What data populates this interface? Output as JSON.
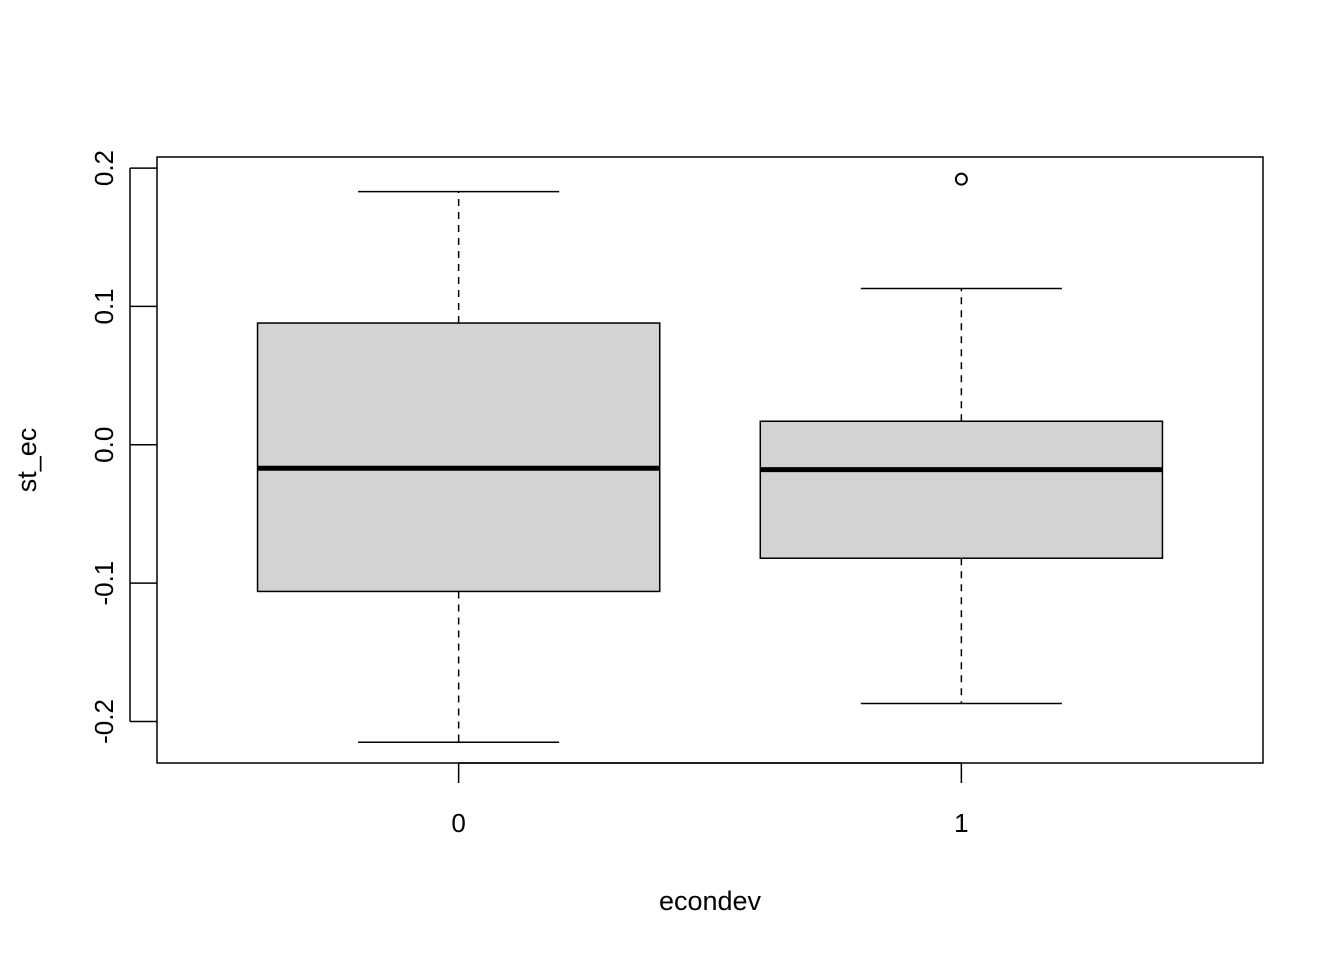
{
  "chart_data": {
    "type": "boxplot",
    "xlabel": "econdev",
    "ylabel": "st_ec",
    "categories": [
      "0",
      "1"
    ],
    "ylim": [
      -0.23,
      0.208
    ],
    "yticks": [
      -0.2,
      -0.1,
      0.0,
      0.1,
      0.2
    ],
    "ytick_labels": [
      "-0.2",
      "-0.1",
      "0.0",
      "0.1",
      "0.2"
    ],
    "boxes": [
      {
        "category": "0",
        "whisker_low": -0.215,
        "q1": -0.106,
        "median": -0.017,
        "q3": 0.088,
        "whisker_high": 0.183,
        "outliers": []
      },
      {
        "category": "1",
        "whisker_low": -0.187,
        "q1": -0.082,
        "median": -0.018,
        "q3": 0.017,
        "whisker_high": 0.113,
        "outliers": [
          0.192
        ]
      }
    ],
    "box_fill": "#d3d3d3",
    "line_color": "#000000",
    "grid": false,
    "legend": "none"
  }
}
